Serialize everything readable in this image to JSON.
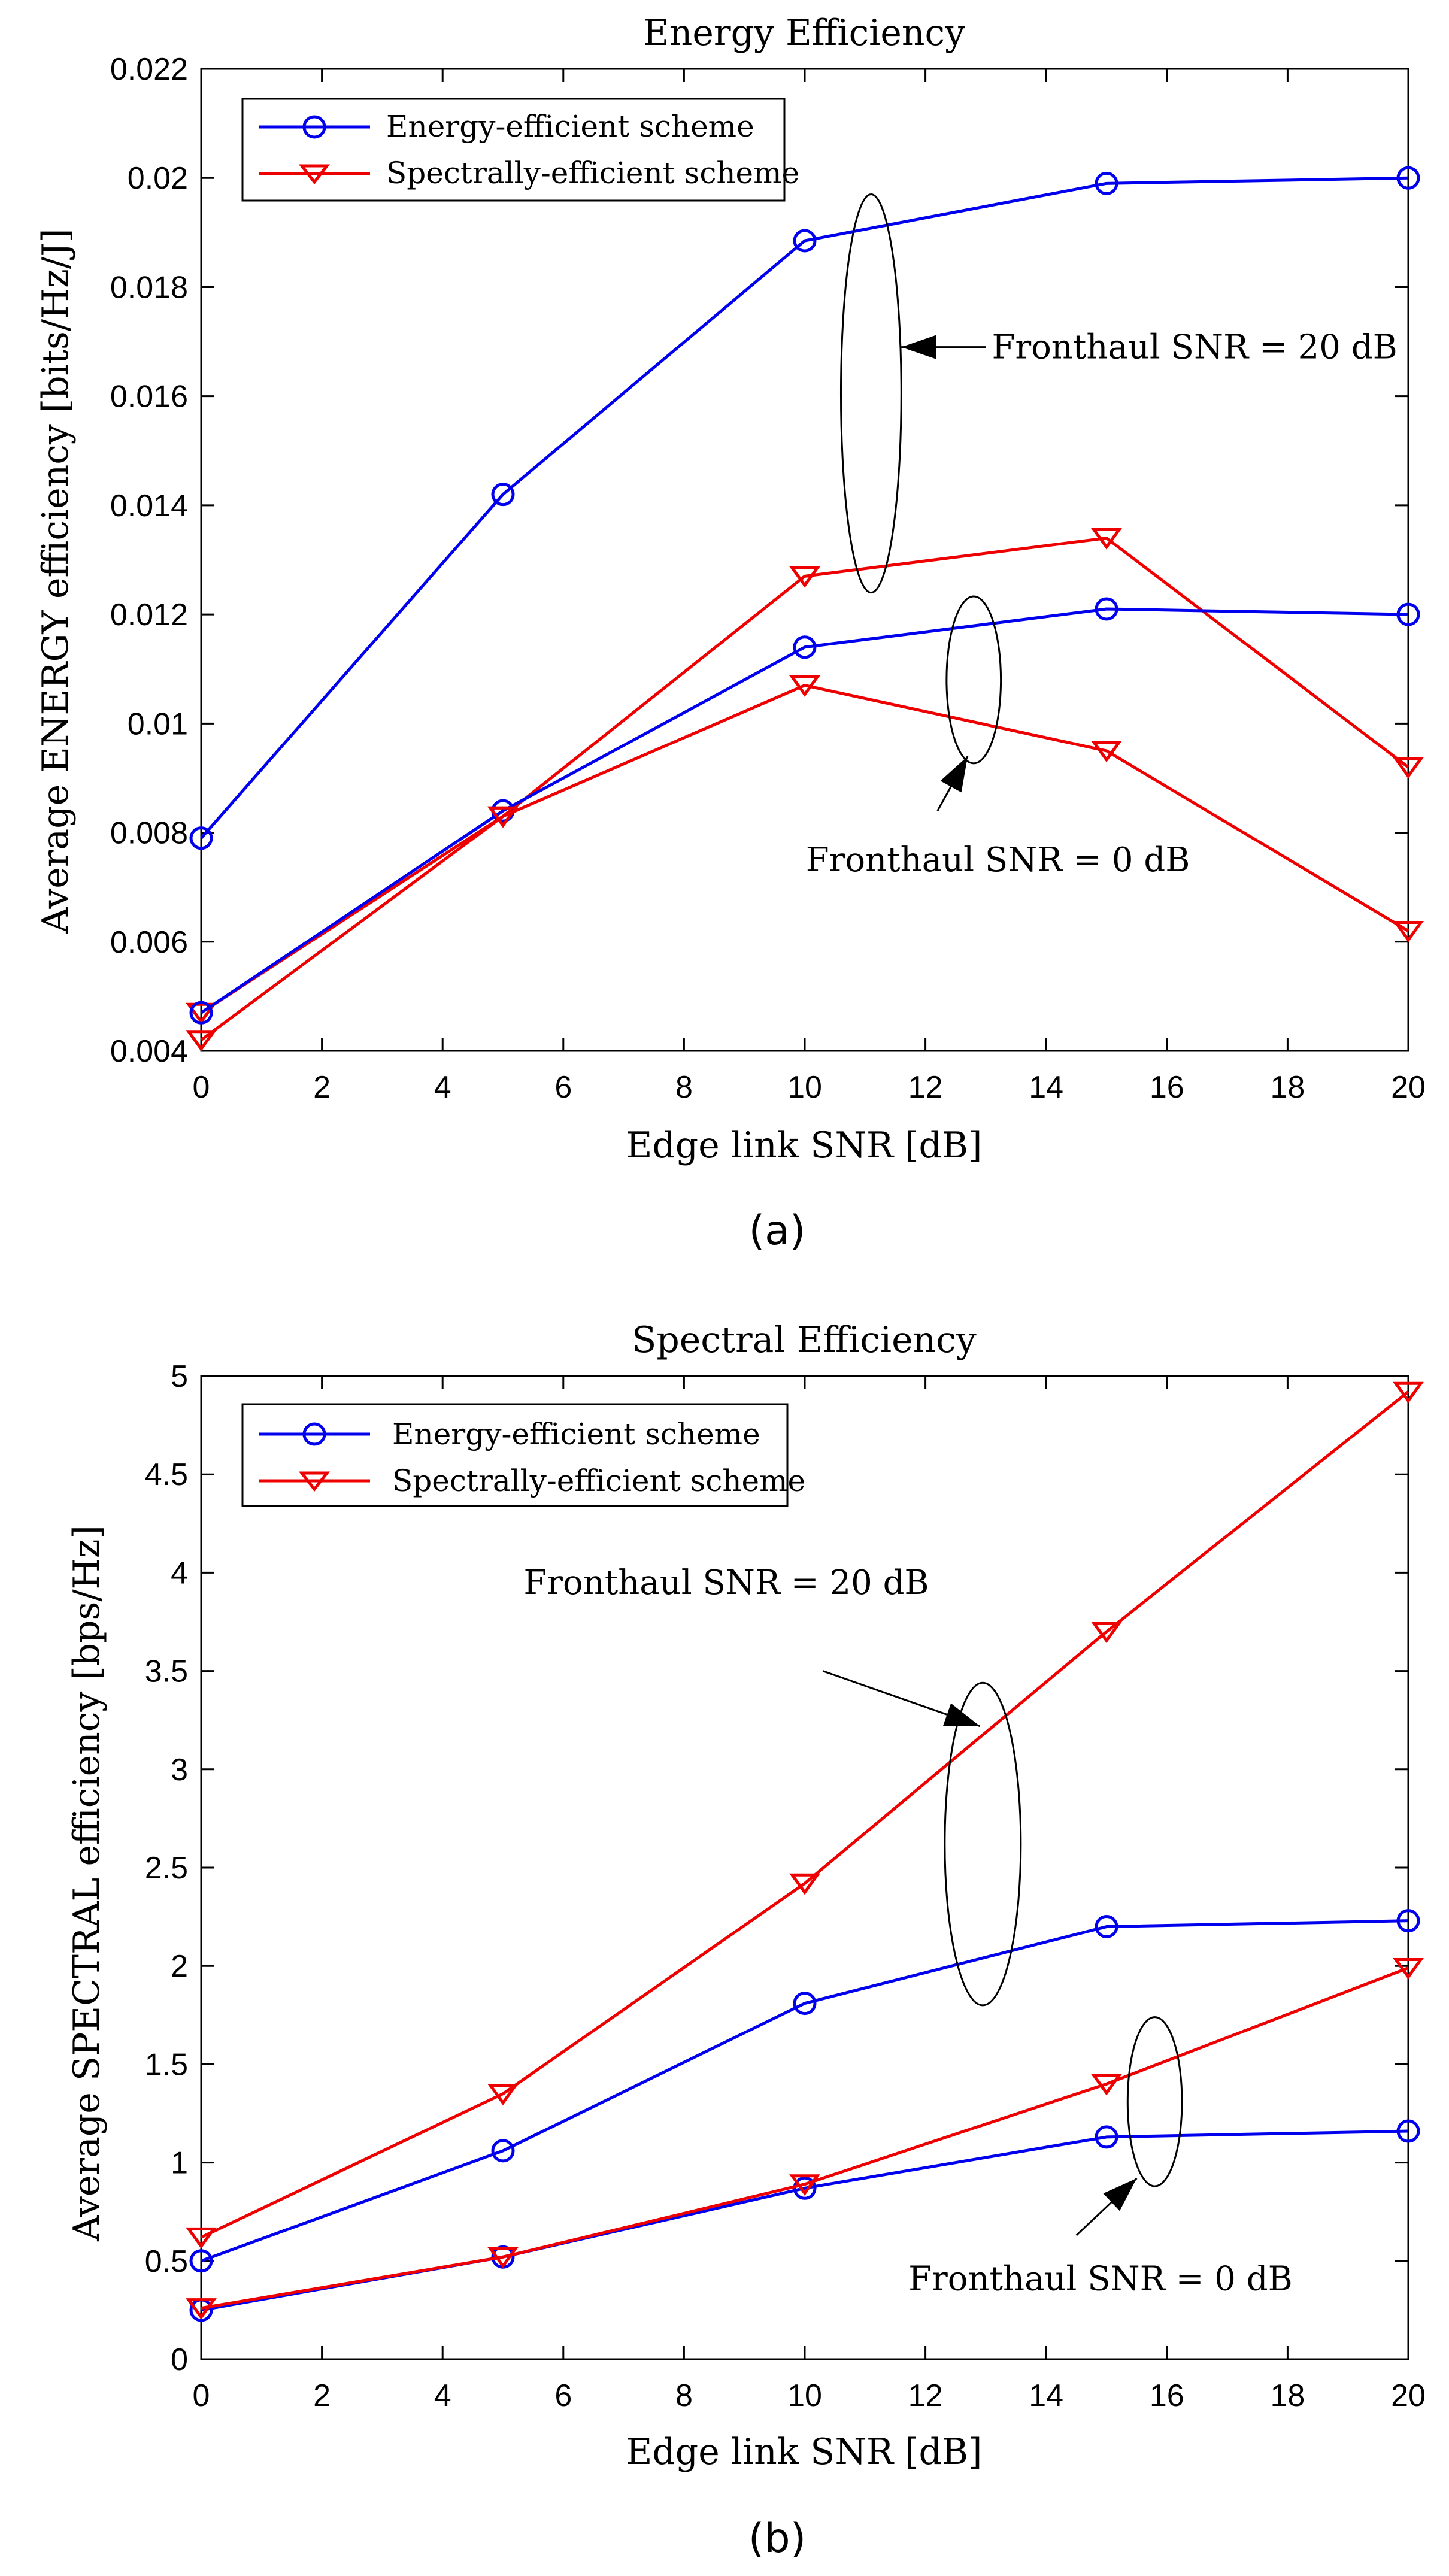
{
  "colors": {
    "energy": "#0000ee",
    "spectral": "#ee0000",
    "axis": "#000000"
  },
  "legend_icons": {
    "energy": "circle-marker-icon",
    "spectral": "down-triangle-marker-icon"
  },
  "chart_data": [
    {
      "id": "a",
      "type": "line",
      "caption": "(a)",
      "title": "Energy Efficiency",
      "xlabel": "Edge link SNR [dB]",
      "ylabel": "Average ENERGY efficiency [bits/Hz/J]",
      "xlim": [
        0,
        20
      ],
      "ylim": [
        0.004,
        0.022
      ],
      "xticks": [
        0,
        2,
        4,
        6,
        8,
        10,
        12,
        14,
        16,
        18,
        20
      ],
      "xtick_labels": [
        "0",
        "2",
        "4",
        "6",
        "8",
        "10",
        "12",
        "14",
        "16",
        "18",
        "20"
      ],
      "yticks": [
        0.004,
        0.006,
        0.008,
        0.01,
        0.012,
        0.014,
        0.016,
        0.018,
        0.02,
        0.022
      ],
      "ytick_labels": [
        "0.004",
        "0.006",
        "0.008",
        "0.01",
        "0.012",
        "0.014",
        "0.016",
        "0.018",
        "0.02",
        "0.022"
      ],
      "grid": false,
      "legend_position": "top-left",
      "legend": [
        "Energy-efficient scheme",
        "Spectrally-efficient scheme"
      ],
      "x": [
        0,
        5,
        10,
        15,
        20
      ],
      "series": [
        {
          "name": "Energy-efficient scheme",
          "scheme": "energy",
          "fronthaul": "20 dB",
          "values": [
            0.0079,
            0.0142,
            0.01885,
            0.0199,
            0.02
          ]
        },
        {
          "name": "Spectrally-efficient scheme",
          "scheme": "spectral",
          "fronthaul": "20 dB",
          "values": [
            0.0047,
            0.0083,
            0.0127,
            0.0134,
            0.0092
          ]
        },
        {
          "name": "Energy-efficient scheme",
          "scheme": "energy",
          "fronthaul": "0 dB",
          "values": [
            0.0047,
            0.0084,
            0.0114,
            0.0121,
            0.012
          ]
        },
        {
          "name": "Spectrally-efficient scheme",
          "scheme": "spectral",
          "fronthaul": "0 dB",
          "values": [
            0.0042,
            0.0083,
            0.0107,
            0.0095,
            0.0062
          ]
        }
      ],
      "annotations": [
        {
          "text": "Fronthaul SNR = 20 dB",
          "ellipse_center": [
            11.1,
            0.01605
          ],
          "ellipse_rx_data": 0.5,
          "ellipse_ry_data": 0.00365,
          "arrow_from": [
            13.0,
            0.0169
          ],
          "arrow_to": [
            11.6,
            0.0169
          ],
          "text_at": [
            13.1,
            0.0169
          ],
          "anchor": "start"
        },
        {
          "text": "Fronthaul SNR = 0 dB",
          "ellipse_center": [
            12.8,
            0.0108
          ],
          "ellipse_rx_data": 0.45,
          "ellipse_ry_data": 0.00153,
          "arrow_from": [
            12.2,
            0.0084
          ],
          "arrow_to": [
            12.7,
            0.0094
          ],
          "text_at": [
            13.2,
            0.0075
          ],
          "anchor": "middle"
        }
      ]
    },
    {
      "id": "b",
      "type": "line",
      "caption": "(b)",
      "title": "Spectral Efficiency",
      "xlabel": "Edge link SNR [dB]",
      "ylabel": "Average SPECTRAL efficiency [bps/Hz]",
      "xlim": [
        0,
        20
      ],
      "ylim": [
        0,
        5
      ],
      "xticks": [
        0,
        2,
        4,
        6,
        8,
        10,
        12,
        14,
        16,
        18,
        20
      ],
      "xtick_labels": [
        "0",
        "2",
        "4",
        "6",
        "8",
        "10",
        "12",
        "14",
        "16",
        "18",
        "20"
      ],
      "yticks": [
        0,
        0.5,
        1,
        1.5,
        2,
        2.5,
        3,
        3.5,
        4,
        4.5,
        5
      ],
      "ytick_labels": [
        "0",
        "0.5",
        "1",
        "1.5",
        "2",
        "2.5",
        "3",
        "3.5",
        "4",
        "4.5",
        "5"
      ],
      "grid": false,
      "legend_position": "top-left",
      "legend": [
        "Energy-efficient scheme",
        "Spectrally-efficient scheme"
      ],
      "x": [
        0,
        5,
        10,
        15,
        20
      ],
      "series": [
        {
          "name": "Energy-efficient scheme",
          "scheme": "energy",
          "fronthaul": "20 dB",
          "values": [
            0.5,
            1.06,
            1.81,
            2.2,
            2.23
          ]
        },
        {
          "name": "Spectrally-efficient scheme",
          "scheme": "spectral",
          "fronthaul": "20 dB",
          "values": [
            0.62,
            1.35,
            2.42,
            3.7,
            4.92
          ]
        },
        {
          "name": "Energy-efficient scheme",
          "scheme": "energy",
          "fronthaul": "0 dB",
          "values": [
            0.25,
            0.52,
            0.87,
            1.13,
            1.16
          ]
        },
        {
          "name": "Spectrally-efficient scheme",
          "scheme": "spectral",
          "fronthaul": "0 dB",
          "values": [
            0.26,
            0.52,
            0.89,
            1.4,
            1.99
          ]
        }
      ],
      "annotations": [
        {
          "text": "Fronthaul SNR = 20 dB",
          "ellipse_center": [
            12.95,
            2.62
          ],
          "ellipse_rx_data": 0.63,
          "ellipse_ry_data": 0.82,
          "arrow_from": [
            10.3,
            3.5
          ],
          "arrow_to": [
            12.9,
            3.22
          ],
          "text_at": [
            8.7,
            3.95
          ],
          "anchor": "middle"
        },
        {
          "text": "Fronthaul SNR = 0 dB",
          "ellipse_center": [
            15.8,
            1.31
          ],
          "ellipse_rx_data": 0.45,
          "ellipse_ry_data": 0.43,
          "arrow_from": [
            14.5,
            0.63
          ],
          "arrow_to": [
            15.5,
            0.92
          ],
          "text_at": [
            14.9,
            0.41
          ],
          "anchor": "middle"
        }
      ]
    }
  ]
}
